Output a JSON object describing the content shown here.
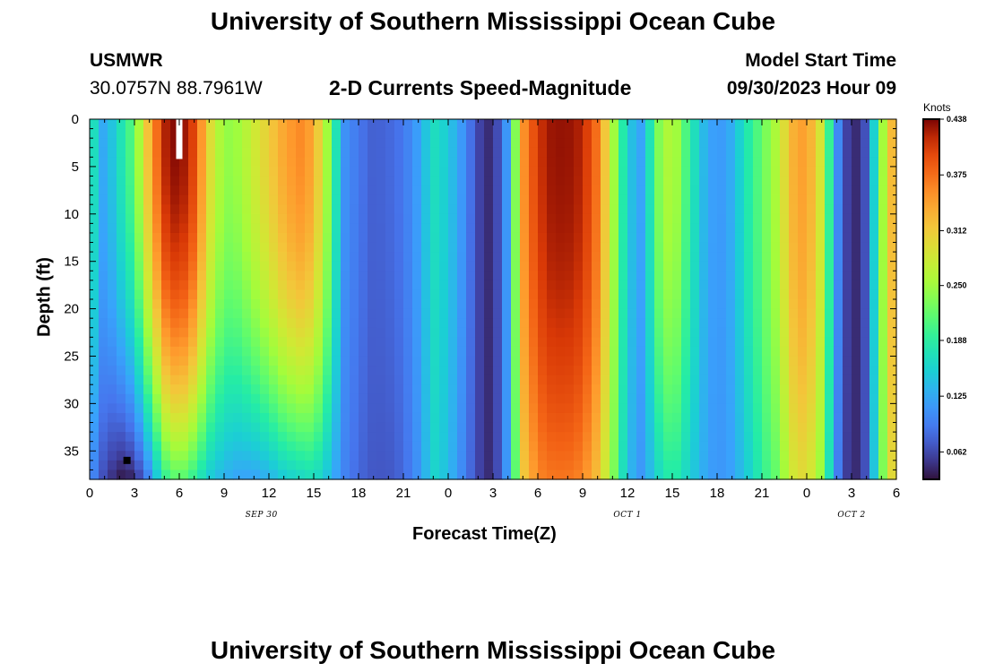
{
  "page": {
    "title_top": "University of Southern Mississippi Ocean Cube",
    "title_bottom": "University of Southern Mississippi Ocean Cube",
    "station": "USMWR",
    "coords": "30.0757N  88.7961W",
    "subtitle": "2-D Currents Speed-Magnitude",
    "model_start_label": "Model Start Time",
    "model_start_value": "09/30/2023 Hour 09",
    "colorbar_title": "Knots"
  },
  "chart_data": {
    "type": "heatmap",
    "title": "2-D Currents Speed-Magnitude",
    "xlabel": "Forecast Time(Z)",
    "ylabel": "Depth (ft)",
    "x_range_hours": [
      0,
      54
    ],
    "y_range_ft": [
      0,
      38
    ],
    "x_tick_labels": [
      "0",
      "3",
      "6",
      "9",
      "12",
      "15",
      "18",
      "21",
      "0",
      "3",
      "6",
      "9",
      "12",
      "15",
      "18",
      "21",
      "0",
      "3",
      "6"
    ],
    "x_tick_hours": [
      0,
      3,
      6,
      9,
      12,
      15,
      18,
      21,
      24,
      27,
      30,
      33,
      36,
      39,
      42,
      45,
      48,
      51,
      54
    ],
    "date_labels": [
      {
        "text": "SEP 30",
        "hour": 11.5
      },
      {
        "text": "OCT 1",
        "hour": 36
      },
      {
        "text": "OCT 2",
        "hour": 51
      }
    ],
    "y_ticks": [
      0,
      5,
      10,
      15,
      20,
      25,
      30,
      35
    ],
    "y_tick_labels": [
      "0",
      "5",
      "10",
      "15",
      "20",
      "25",
      "30",
      "35"
    ],
    "colorbar": {
      "unit": "Knots",
      "min": 0.031,
      "max": 0.438,
      "tick_values": [
        0.062,
        0.125,
        0.188,
        0.25,
        0.312,
        0.375,
        0.438
      ],
      "tick_labels": [
        "0.062",
        "0.125",
        "0.188",
        "0.250",
        "0.312",
        "0.375",
        "0.438"
      ]
    },
    "surface_profile_knots": [
      {
        "h": 0,
        "v": 0.19
      },
      {
        "h": 1,
        "v": 0.12
      },
      {
        "h": 2,
        "v": 0.17
      },
      {
        "h": 3,
        "v": 0.22
      },
      {
        "h": 4,
        "v": 0.33
      },
      {
        "h": 5,
        "v": 0.42
      },
      {
        "h": 6,
        "v": 0.44
      },
      {
        "h": 7,
        "v": 0.4
      },
      {
        "h": 8,
        "v": 0.3
      },
      {
        "h": 9,
        "v": 0.24
      },
      {
        "h": 10,
        "v": 0.25
      },
      {
        "h": 11,
        "v": 0.28
      },
      {
        "h": 12,
        "v": 0.31
      },
      {
        "h": 13,
        "v": 0.34
      },
      {
        "h": 14,
        "v": 0.36
      },
      {
        "h": 15,
        "v": 0.34
      },
      {
        "h": 16,
        "v": 0.24
      },
      {
        "h": 17,
        "v": 0.11
      },
      {
        "h": 18,
        "v": 0.09
      },
      {
        "h": 19,
        "v": 0.075
      },
      {
        "h": 20,
        "v": 0.08
      },
      {
        "h": 21,
        "v": 0.09
      },
      {
        "h": 22,
        "v": 0.12
      },
      {
        "h": 23,
        "v": 0.17
      },
      {
        "h": 24,
        "v": 0.15
      },
      {
        "h": 25,
        "v": 0.11
      },
      {
        "h": 26,
        "v": 0.06
      },
      {
        "h": 27,
        "v": 0.04
      },
      {
        "h": 28,
        "v": 0.12
      },
      {
        "h": 29,
        "v": 0.35
      },
      {
        "h": 30,
        "v": 0.41
      },
      {
        "h": 31,
        "v": 0.43
      },
      {
        "h": 32,
        "v": 0.43
      },
      {
        "h": 33,
        "v": 0.42
      },
      {
        "h": 34,
        "v": 0.37
      },
      {
        "h": 35,
        "v": 0.26
      },
      {
        "h": 36,
        "v": 0.15
      },
      {
        "h": 37,
        "v": 0.12
      },
      {
        "h": 38,
        "v": 0.23
      },
      {
        "h": 39,
        "v": 0.27
      },
      {
        "h": 40,
        "v": 0.2
      },
      {
        "h": 41,
        "v": 0.14
      },
      {
        "h": 42,
        "v": 0.11
      },
      {
        "h": 43,
        "v": 0.13
      },
      {
        "h": 44,
        "v": 0.18
      },
      {
        "h": 45,
        "v": 0.22
      },
      {
        "h": 46,
        "v": 0.26
      },
      {
        "h": 47,
        "v": 0.33
      },
      {
        "h": 48,
        "v": 0.35
      },
      {
        "h": 49,
        "v": 0.28
      },
      {
        "h": 50,
        "v": 0.11
      },
      {
        "h": 51,
        "v": 0.035
      },
      {
        "h": 52,
        "v": 0.07
      },
      {
        "h": 53,
        "v": 0.24
      },
      {
        "h": 54,
        "v": 0.36
      }
    ],
    "bottom_profile_knots": [
      {
        "h": 0,
        "v": 0.11
      },
      {
        "h": 1,
        "v": 0.06
      },
      {
        "h": 2,
        "v": 0.035
      },
      {
        "h": 3,
        "v": 0.04
      },
      {
        "h": 4,
        "v": 0.1
      },
      {
        "h": 5,
        "v": 0.19
      },
      {
        "h": 6,
        "v": 0.22
      },
      {
        "h": 7,
        "v": 0.19
      },
      {
        "h": 8,
        "v": 0.15
      },
      {
        "h": 9,
        "v": 0.13
      },
      {
        "h": 10,
        "v": 0.12
      },
      {
        "h": 11,
        "v": 0.12
      },
      {
        "h": 12,
        "v": 0.13
      },
      {
        "h": 13,
        "v": 0.15
      },
      {
        "h": 14,
        "v": 0.16
      },
      {
        "h": 15,
        "v": 0.17
      },
      {
        "h": 16,
        "v": 0.14
      },
      {
        "h": 17,
        "v": 0.1
      },
      {
        "h": 18,
        "v": 0.08
      },
      {
        "h": 19,
        "v": 0.07
      },
      {
        "h": 20,
        "v": 0.07
      },
      {
        "h": 21,
        "v": 0.08
      },
      {
        "h": 22,
        "v": 0.11
      },
      {
        "h": 23,
        "v": 0.16
      },
      {
        "h": 24,
        "v": 0.14
      },
      {
        "h": 25,
        "v": 0.1
      },
      {
        "h": 26,
        "v": 0.06
      },
      {
        "h": 27,
        "v": 0.04
      },
      {
        "h": 28,
        "v": 0.12
      },
      {
        "h": 29,
        "v": 0.31
      },
      {
        "h": 30,
        "v": 0.36
      },
      {
        "h": 31,
        "v": 0.37
      },
      {
        "h": 32,
        "v": 0.37
      },
      {
        "h": 33,
        "v": 0.36
      },
      {
        "h": 34,
        "v": 0.32
      },
      {
        "h": 35,
        "v": 0.24
      },
      {
        "h": 36,
        "v": 0.14
      },
      {
        "h": 37,
        "v": 0.11
      },
      {
        "h": 38,
        "v": 0.16
      },
      {
        "h": 39,
        "v": 0.19
      },
      {
        "h": 40,
        "v": 0.16
      },
      {
        "h": 41,
        "v": 0.13
      },
      {
        "h": 42,
        "v": 0.11
      },
      {
        "h": 43,
        "v": 0.12
      },
      {
        "h": 44,
        "v": 0.15
      },
      {
        "h": 45,
        "v": 0.19
      },
      {
        "h": 46,
        "v": 0.22
      },
      {
        "h": 47,
        "v": 0.28
      },
      {
        "h": 48,
        "v": 0.3
      },
      {
        "h": 49,
        "v": 0.24
      },
      {
        "h": 50,
        "v": 0.1
      },
      {
        "h": 51,
        "v": 0.035
      },
      {
        "h": 52,
        "v": 0.07
      },
      {
        "h": 53,
        "v": 0.22
      },
      {
        "h": 54,
        "v": 0.33
      }
    ],
    "missing_data_marker": {
      "hour": 6,
      "depth_from": 0,
      "depth_to": 4.2
    },
    "point_marker": {
      "hour": 2.5,
      "depth": 36
    }
  }
}
